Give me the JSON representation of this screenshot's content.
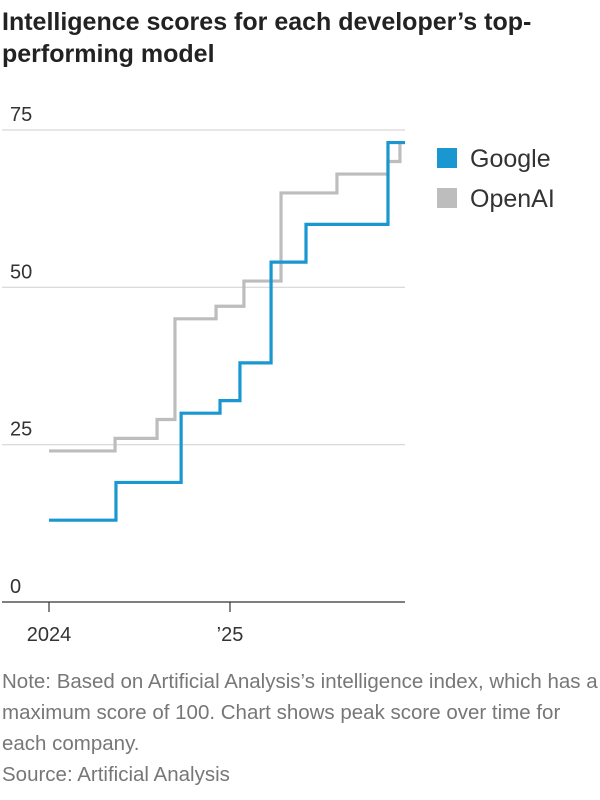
{
  "chart_data": {
    "type": "line",
    "drawstyle": "steps-post",
    "title": "Intelligence scores for each developer’s top-performing model",
    "note": "Note: Based on Artificial Analysis’s intelligence index, which has a maximum score of 100. Chart shows peak score over time for each company.",
    "source": "Source: Artificial Analysis",
    "xlim": [
      2024,
      2025.967
    ],
    "xticks": [
      2024,
      {
        "value": 2025,
        "label": "’25"
      }
    ],
    "ylim": [
      0,
      75
    ],
    "yticks": [
      0,
      25,
      50,
      75
    ],
    "grid": true,
    "legend": "upper right",
    "series": [
      {
        "name": "Google",
        "color": "#1a96d0",
        "x": [
          2024,
          2024.37,
          2024.73,
          2024.945,
          2025.055,
          2025.227,
          2025.42,
          2025.873,
          2025.967
        ],
        "values": [
          13,
          19,
          30,
          32,
          38,
          54,
          60,
          73,
          73
        ]
      },
      {
        "name": "OpenAI",
        "color": "#bdbdbd",
        "x": [
          2024,
          2024.365,
          2024.597,
          2024.696,
          2024.923,
          2025.077,
          2025.282,
          2025.591,
          2025.873,
          2025.939,
          2025.967
        ],
        "values": [
          24,
          26,
          29,
          45,
          47,
          51,
          65,
          68,
          70,
          73,
          73
        ]
      }
    ]
  }
}
